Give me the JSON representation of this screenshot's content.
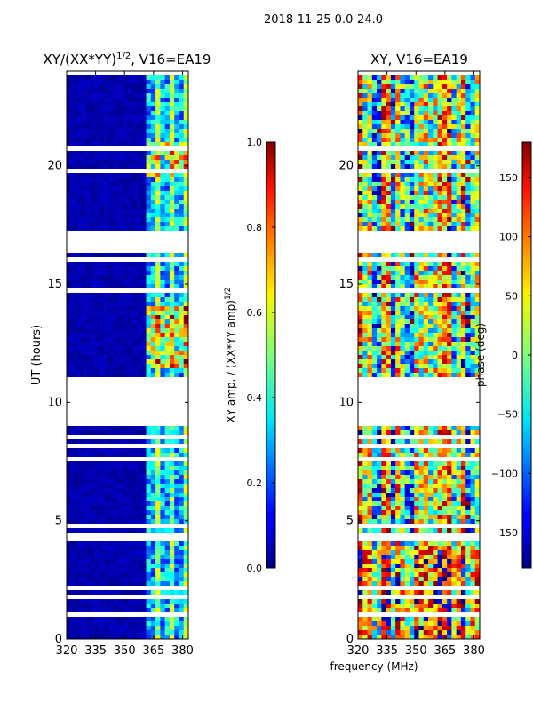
{
  "figure": {
    "suptitle": "2018-11-25 0.0-24.0",
    "shared_xlabel": "frequency (MHz)"
  },
  "chart_data": [
    {
      "type": "heatmap",
      "title_base": "XY/(XX*YY)",
      "title_exponent": "1/2",
      "title_suffix": ", V16=EA19",
      "xlabel": "",
      "ylabel": "UT (hours)",
      "xlim": [
        320,
        383
      ],
      "ylim": [
        0,
        24
      ],
      "xticks": [
        320,
        335,
        350,
        365,
        380
      ],
      "yticks": [
        0,
        5,
        10,
        15,
        20
      ],
      "colorbar": {
        "label_base": "XY amp. / (XX*YY amp)",
        "label_exponent": "1/2",
        "range": [
          0.0,
          1.0
        ],
        "ticks": [
          "0.0",
          "0.2",
          "0.4",
          "0.6",
          "0.8",
          "1.0"
        ],
        "tick_values": [
          0.0,
          0.2,
          0.4,
          0.6,
          0.8,
          1.0
        ]
      },
      "colormap": "jet",
      "data_gaps_hours": [
        [
          9.0,
          11.0
        ],
        [
          16.3,
          17.3
        ]
      ],
      "active_band_mhz": [
        360,
        383
      ]
    },
    {
      "type": "heatmap",
      "title_base": "XY, V16=EA19",
      "title_exponent": "",
      "title_suffix": "",
      "xlabel": "frequency (MHz)",
      "ylabel": "",
      "xlim": [
        320,
        383
      ],
      "ylim": [
        0,
        24
      ],
      "xticks": [
        320,
        335,
        350,
        365,
        380
      ],
      "yticks": [
        0,
        5,
        10,
        15,
        20
      ],
      "colorbar": {
        "label_base": "phase (deg)",
        "label_exponent": "",
        "range": [
          -180,
          180
        ],
        "ticks": [
          "−150",
          "−100",
          "−50",
          "0",
          "50",
          "100",
          "150"
        ],
        "tick_values": [
          -150,
          -100,
          -50,
          0,
          50,
          100,
          150
        ]
      },
      "colormap": "jet",
      "data_gaps_hours": [
        [
          9.0,
          11.0
        ],
        [
          16.3,
          17.3
        ]
      ]
    }
  ]
}
